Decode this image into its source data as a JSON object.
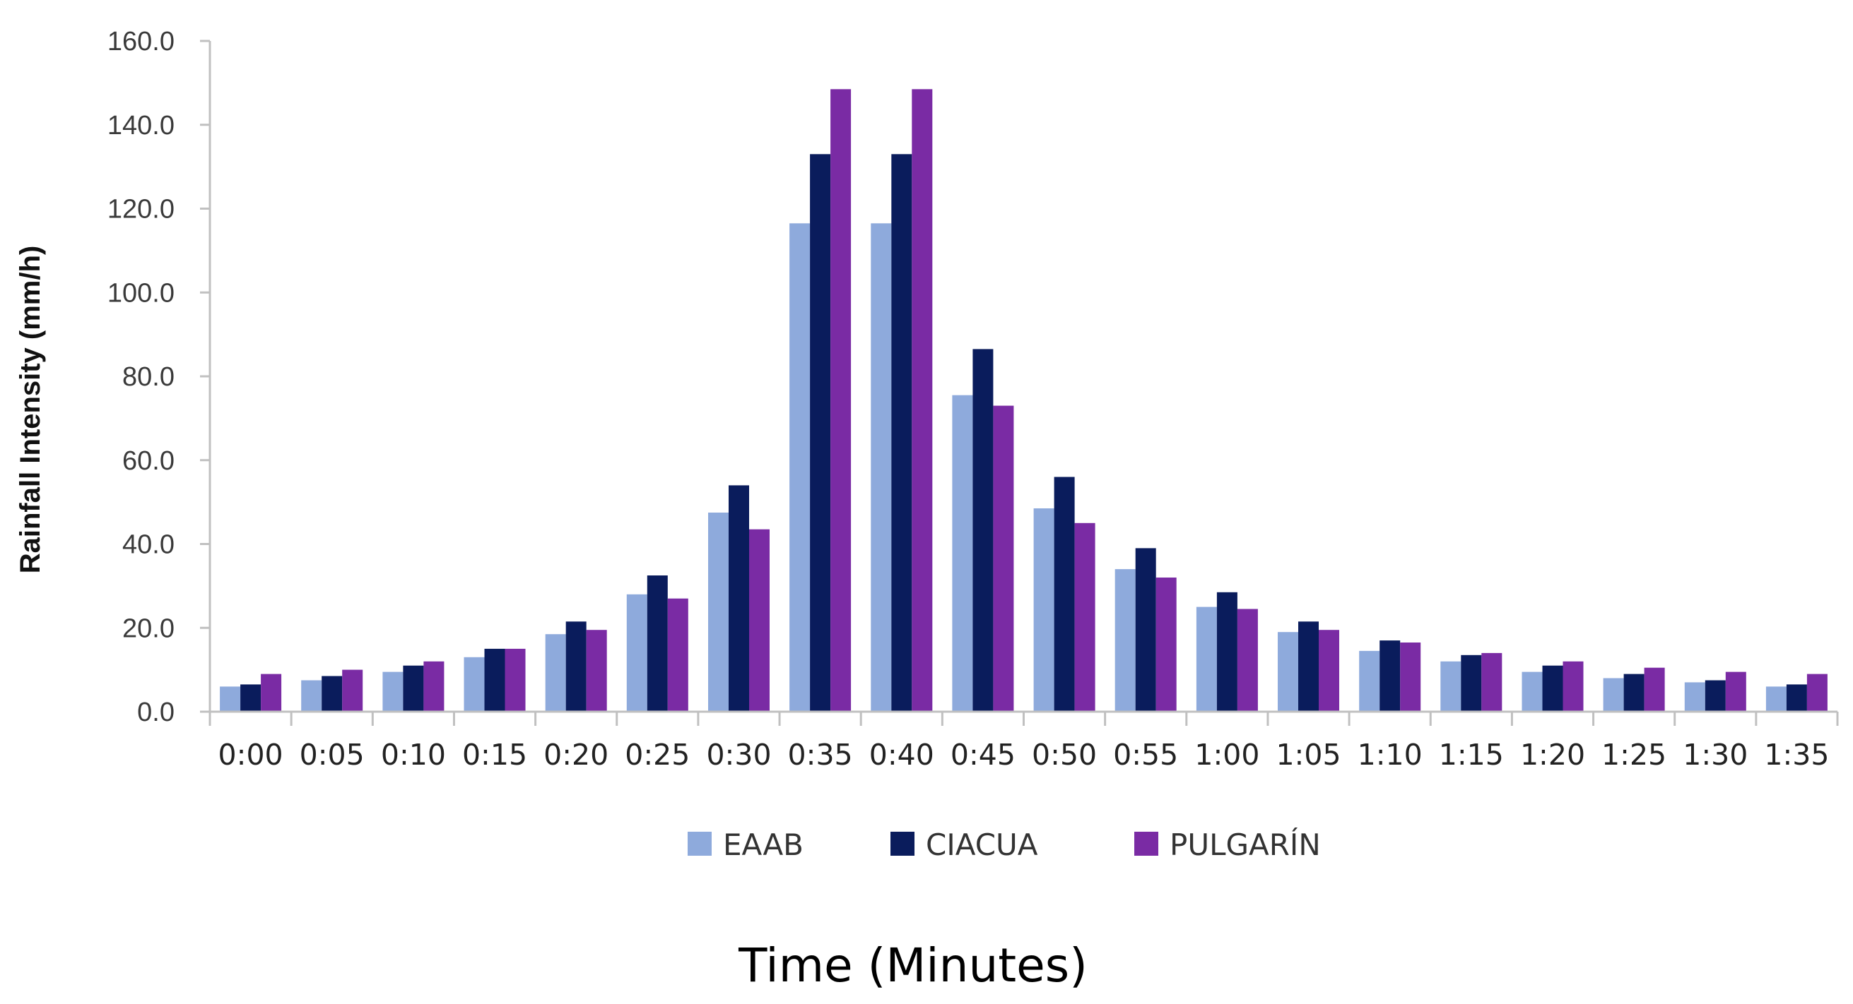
{
  "chart_data": {
    "type": "bar",
    "title": "",
    "xlabel": "Time (Minutes)",
    "ylabel": "Rainfall Intensity (mm/h)",
    "ylim": [
      0,
      160
    ],
    "yticks": [
      "0.0",
      "20.0",
      "40.0",
      "60.0",
      "80.0",
      "100.0",
      "120.0",
      "140.0",
      "160.0"
    ],
    "categories": [
      "0:00",
      "0:05",
      "0:10",
      "0:15",
      "0:20",
      "0:25",
      "0:30",
      "0:35",
      "0:40",
      "0:45",
      "0:50",
      "0:55",
      "1:00",
      "1:05",
      "1:10",
      "1:15",
      "1:20",
      "1:25",
      "1:30",
      "1:35"
    ],
    "series": [
      {
        "name": "EAAB",
        "color": "#8eaadc",
        "values": [
          6.0,
          7.5,
          9.5,
          13.0,
          18.5,
          28.0,
          47.5,
          116.5,
          116.5,
          75.5,
          48.5,
          34.0,
          25.0,
          19.0,
          14.5,
          12.0,
          9.5,
          8.0,
          7.0,
          6.0
        ]
      },
      {
        "name": "CIACUA",
        "color": "#0a1c5c",
        "values": [
          6.5,
          8.5,
          11.0,
          15.0,
          21.5,
          32.5,
          54.0,
          133.0,
          133.0,
          86.5,
          56.0,
          39.0,
          28.5,
          21.5,
          17.0,
          13.5,
          11.0,
          9.0,
          7.5,
          6.5
        ]
      },
      {
        "name": "PULGARÍN",
        "color": "#7a2ba4",
        "values": [
          9.0,
          10.0,
          12.0,
          15.0,
          19.5,
          27.0,
          43.5,
          148.5,
          148.5,
          73.0,
          45.0,
          32.0,
          24.5,
          19.5,
          16.5,
          14.0,
          12.0,
          10.5,
          9.5,
          9.0
        ]
      }
    ],
    "legend_position": "bottom-center",
    "grid": false,
    "axis_color": "#c0c0c0"
  }
}
